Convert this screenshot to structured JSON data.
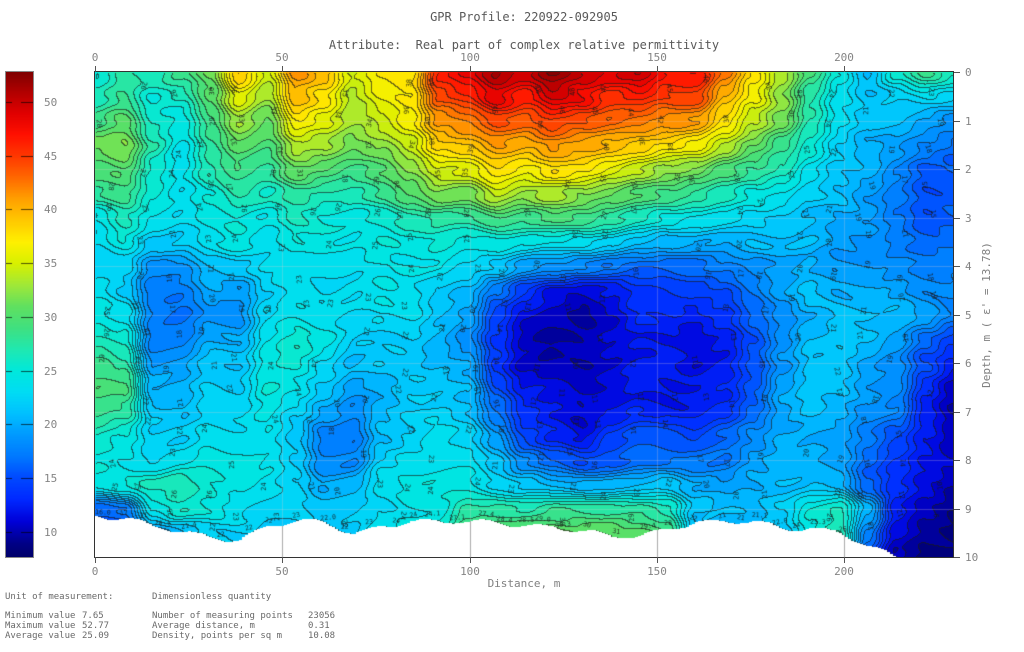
{
  "header": {
    "title": "GPR Profile: 220922-092905",
    "subtitle": "Attribute:  Real part of complex relative permittivity"
  },
  "stats": {
    "unit_label": "Unit of measurement:",
    "unit_value": "Dimensionless quantity",
    "rows_left": [
      {
        "label": "Minimum value",
        "value": "7.65"
      },
      {
        "label": "Maximum value",
        "value": "52.77"
      },
      {
        "label": "Average value",
        "value": "25.09"
      }
    ],
    "rows_right": [
      {
        "label": "Number of measuring points",
        "value": "23056"
      },
      {
        "label": "Average distance, m",
        "value": "0.31"
      },
      {
        "label": "Density, points per sq m",
        "value": "10.08"
      }
    ]
  },
  "chart_data": {
    "type": "heatmap",
    "title": "GPR Profile: 220922-092905",
    "attribute": "Real part of complex relative permittivity",
    "xlabel": "Distance, m",
    "ylabel": "Depth, m ( ε' = 13.78)",
    "x_range": [
      0,
      229
    ],
    "depth_range": [
      0,
      10
    ],
    "x_ticks": [
      0,
      50,
      100,
      150,
      200
    ],
    "depth_ticks": [
      0,
      1,
      2,
      3,
      4,
      5,
      6,
      7,
      8,
      9,
      10
    ],
    "colorbar_ticks": [
      10,
      15,
      20,
      25,
      30,
      35,
      40,
      45,
      50
    ],
    "value_min": 7.65,
    "value_max": 52.77,
    "value_avg": 25.09,
    "contour_interval": 1,
    "grid_on": true,
    "legend_position": "left-colorbar",
    "colormap": [
      [
        7.65,
        "#000068"
      ],
      [
        9,
        "#000088"
      ],
      [
        11,
        "#0000d8"
      ],
      [
        13,
        "#0028ff"
      ],
      [
        15,
        "#0048ff"
      ],
      [
        17,
        "#0078ff"
      ],
      [
        19,
        "#0098ff"
      ],
      [
        21,
        "#00c0ff"
      ],
      [
        23,
        "#00dcf4"
      ],
      [
        25,
        "#00e8dc"
      ],
      [
        27,
        "#20e8b0"
      ],
      [
        29,
        "#40e080"
      ],
      [
        31,
        "#60e060"
      ],
      [
        33,
        "#a0e838"
      ],
      [
        35,
        "#d8f000"
      ],
      [
        37,
        "#fff000"
      ],
      [
        39,
        "#ffc800"
      ],
      [
        41,
        "#ffa000"
      ],
      [
        43,
        "#ff6800"
      ],
      [
        45,
        "#ff3800"
      ],
      [
        47,
        "#ff1000"
      ],
      [
        49,
        "#e00000"
      ],
      [
        51,
        "#b00000"
      ],
      [
        52.77,
        "#800000"
      ]
    ],
    "grid_x": [
      0,
      7.6,
      15.3,
      22.9,
      30.5,
      38.2,
      45.8,
      53.4,
      61.1,
      68.7,
      76.3,
      84.0,
      91.6,
      99.2,
      106.9,
      114.5,
      122.1,
      129.8,
      137.4,
      145.0,
      152.7,
      160.3,
      167.9,
      175.6,
      183.2,
      190.8,
      198.5,
      206.1,
      213.7,
      221.4,
      229.0
    ],
    "grid_depth": [
      0,
      0.5,
      1,
      1.5,
      2,
      2.5,
      3,
      3.5,
      4,
      4.5,
      5,
      5.5,
      6,
      6.5,
      7,
      7.5,
      8,
      8.5,
      9,
      9.5,
      10
    ],
    "values": [
      [
        24,
        27,
        26,
        28,
        31,
        39,
        35,
        42,
        40,
        35,
        37,
        38,
        46,
        48,
        51,
        49,
        52,
        50,
        49,
        50,
        47,
        48,
        43,
        38,
        34,
        29,
        25,
        21,
        25,
        28,
        26
      ],
      [
        26,
        28,
        25,
        26,
        30,
        36,
        33,
        40,
        38,
        34,
        36,
        37,
        44,
        45,
        48,
        46,
        49,
        48,
        46,
        47,
        45,
        45,
        40,
        36,
        32,
        27,
        23,
        21,
        22,
        23,
        22
      ],
      [
        28,
        30,
        26,
        25,
        29,
        33,
        31,
        37,
        35,
        33,
        34,
        36,
        41,
        42,
        44,
        43,
        45,
        44,
        43,
        43,
        42,
        41,
        38,
        34,
        31,
        26,
        23,
        21,
        21,
        20,
        19
      ],
      [
        31,
        32,
        27,
        24,
        28,
        31,
        30,
        34,
        33,
        31,
        32,
        34,
        38,
        39,
        41,
        40,
        42,
        41,
        40,
        39,
        38,
        37,
        34,
        31,
        28,
        25,
        22,
        20,
        19,
        18,
        17
      ],
      [
        29,
        30,
        26,
        24,
        27,
        29,
        28,
        31,
        30,
        29,
        30,
        32,
        35,
        35,
        37,
        36,
        38,
        37,
        36,
        35,
        33,
        32,
        30,
        28,
        26,
        23,
        21,
        20,
        18,
        16,
        16
      ],
      [
        27,
        28,
        25,
        23,
        25,
        27,
        26,
        28,
        27,
        27,
        28,
        30,
        32,
        31,
        34,
        32,
        33,
        32,
        31,
        30,
        29,
        28,
        27,
        25,
        24,
        22,
        21,
        19,
        17,
        15,
        15
      ],
      [
        24,
        26,
        24,
        23,
        24,
        25,
        24,
        26,
        25,
        25,
        26,
        27,
        28,
        28,
        29,
        28,
        29,
        28,
        27,
        26,
        25,
        24,
        24,
        23,
        22,
        21,
        20,
        19,
        17,
        15,
        16
      ],
      [
        23,
        25,
        22,
        22,
        23,
        24,
        23,
        24,
        24,
        24,
        25,
        25,
        26,
        25,
        25,
        24,
        24,
        23,
        22,
        21,
        20,
        20,
        20,
        21,
        21,
        21,
        20,
        19,
        18,
        17,
        17
      ],
      [
        23,
        23,
        19,
        19,
        21,
        22,
        23,
        23,
        23,
        23,
        24,
        24,
        24,
        23,
        22,
        20,
        19,
        18,
        17,
        16,
        16,
        16,
        17,
        18,
        19,
        20,
        19,
        19,
        19,
        18,
        18
      ],
      [
        24,
        22,
        18,
        18,
        20,
        19,
        22,
        23,
        22,
        23,
        24,
        23,
        22,
        21,
        17,
        14,
        12,
        11,
        12,
        14,
        14,
        14,
        15,
        17,
        19,
        21,
        20,
        20,
        20,
        19,
        19
      ],
      [
        25,
        24,
        18,
        17,
        19,
        19,
        23,
        24,
        23,
        22,
        23,
        23,
        21,
        20,
        15,
        12,
        11,
        10,
        11,
        13,
        13,
        12,
        13,
        16,
        18,
        20,
        21,
        21,
        21,
        20,
        18
      ],
      [
        27,
        26,
        18,
        18,
        20,
        20,
        24,
        25,
        24,
        22,
        22,
        22,
        21,
        19,
        14,
        11,
        10,
        10,
        11,
        12,
        12,
        11,
        12,
        15,
        18,
        21,
        22,
        21,
        20,
        17,
        15
      ],
      [
        29,
        28,
        19,
        19,
        21,
        21,
        24,
        25,
        23,
        21,
        22,
        22,
        21,
        20,
        14,
        11,
        10,
        10,
        11,
        12,
        12,
        11,
        12,
        15,
        19,
        22,
        22,
        20,
        19,
        15,
        12
      ],
      [
        30,
        29,
        20,
        20,
        22,
        22,
        25,
        24,
        22,
        20,
        21,
        22,
        22,
        21,
        15,
        12,
        11,
        10,
        11,
        12,
        12,
        12,
        13,
        16,
        20,
        22,
        21,
        19,
        18,
        13,
        10
      ],
      [
        28,
        27,
        21,
        21,
        23,
        23,
        25,
        23,
        20,
        18,
        21,
        22,
        22,
        21,
        17,
        13,
        12,
        11,
        12,
        13,
        13,
        13,
        14,
        17,
        20,
        21,
        20,
        18,
        17,
        12,
        10
      ],
      [
        26,
        25,
        22,
        22,
        24,
        24,
        24,
        22,
        18,
        17,
        21,
        22,
        23,
        22,
        19,
        15,
        13,
        12,
        15,
        16,
        16,
        15,
        16,
        18,
        20,
        20,
        19,
        17,
        15,
        12,
        10
      ],
      [
        25,
        24,
        23,
        24,
        25,
        25,
        24,
        22,
        18,
        18,
        22,
        23,
        23,
        23,
        21,
        18,
        16,
        15,
        16,
        17,
        17,
        17,
        17,
        19,
        20,
        20,
        19,
        16,
        14,
        12,
        11
      ],
      [
        24,
        25,
        26,
        27,
        26,
        25,
        24,
        23,
        20,
        20,
        23,
        24,
        24,
        24,
        23,
        22,
        21,
        21,
        21,
        21,
        22,
        20,
        19,
        20,
        21,
        21,
        20,
        16,
        13,
        11,
        10
      ],
      [
        16,
        17,
        24,
        26,
        25,
        24,
        23,
        23,
        22,
        22,
        23,
        24,
        24,
        27,
        27,
        27,
        28,
        28,
        28,
        28,
        27,
        22,
        21,
        21,
        22,
        25,
        26,
        20,
        12,
        10,
        9
      ],
      [
        14,
        13,
        18,
        20,
        22,
        22,
        22,
        22,
        22,
        22,
        24,
        25,
        25,
        30,
        30,
        30,
        31,
        31,
        31,
        30,
        29,
        21,
        21,
        21,
        22,
        25,
        27,
        18,
        11,
        9,
        8
      ],
      [
        12,
        11,
        14,
        16,
        20,
        21,
        21,
        21,
        21,
        21,
        23,
        24,
        24,
        28,
        28,
        28,
        29,
        29,
        29,
        28,
        27,
        20,
        20,
        20,
        21,
        23,
        25,
        15,
        10,
        8,
        8
      ]
    ],
    "bottom_boundary_depth": [
      9.1,
      9.2,
      9.4,
      9.5,
      9.55,
      9.6,
      9.35,
      9.3,
      9.3,
      9.5,
      9.3,
      9.25,
      9.3,
      9.3,
      9.25,
      9.3,
      9.35,
      9.5,
      9.6,
      9.55,
      9.35,
      9.25,
      9.3,
      9.3,
      9.4,
      9.35,
      9.45,
      9.8,
      10.05,
      10.05,
      10.05
    ]
  }
}
